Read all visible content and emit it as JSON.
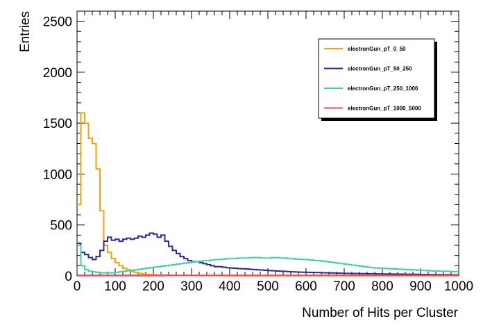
{
  "chart_data": {
    "type": "line",
    "title": "",
    "xlabel": "Number of Hits per Cluster",
    "ylabel": "Entries",
    "xlim": [
      0,
      1000
    ],
    "ylim": [
      0,
      2600
    ],
    "x_ticks": [
      "0",
      "100",
      "200",
      "300",
      "400",
      "500",
      "600",
      "700",
      "800",
      "900",
      "1000"
    ],
    "y_ticks": [
      "0",
      "500",
      "1000",
      "1500",
      "2000",
      "2500"
    ],
    "grid": false,
    "legend_position": "top-right",
    "bin_width": 10,
    "series": [
      {
        "name": "electronGun_pT_0_50",
        "color": "#f5a300",
        "values": [
          700,
          1600,
          1500,
          1350,
          1300,
          1050,
          640,
          300,
          230,
          170,
          130,
          100,
          75,
          60,
          45,
          35,
          25,
          20,
          15,
          12,
          10,
          8,
          7,
          6,
          5,
          5,
          4,
          4,
          3,
          3,
          3,
          2,
          2,
          2,
          2,
          2,
          2,
          2,
          1,
          1,
          1,
          1,
          1,
          1,
          1,
          1,
          1,
          1,
          1,
          1,
          1,
          1,
          1,
          1,
          1,
          1,
          1,
          1,
          1,
          1,
          1,
          1,
          1,
          1,
          1,
          1,
          1,
          1,
          1,
          1,
          1,
          1,
          1,
          1,
          1,
          1,
          1,
          1,
          1,
          1,
          1,
          1,
          1,
          1,
          1,
          1,
          1,
          1,
          1,
          1,
          1,
          1,
          1,
          1,
          1,
          1,
          1,
          1,
          1,
          1
        ]
      },
      {
        "name": "electronGun_pT_50_250",
        "color": "#2c2c8c",
        "values": [
          320,
          230,
          210,
          180,
          160,
          190,
          250,
          340,
          380,
          350,
          360,
          340,
          360,
          370,
          360,
          370,
          390,
          380,
          400,
          420,
          410,
          380,
          400,
          340,
          290,
          250,
          220,
          190,
          170,
          150,
          140,
          140,
          130,
          120,
          110,
          100,
          90,
          90,
          85,
          80,
          78,
          75,
          72,
          70,
          68,
          65,
          62,
          60,
          58,
          55,
          52,
          50,
          48,
          46,
          44,
          42,
          40,
          38,
          37,
          36,
          35,
          34,
          33,
          32,
          31,
          30,
          29,
          28,
          27,
          26,
          25,
          24,
          24,
          23,
          22,
          22,
          21,
          21,
          20,
          20,
          19,
          19,
          18,
          18,
          17,
          17,
          16,
          16,
          15,
          15,
          14,
          14,
          13,
          13,
          12,
          12,
          11,
          11,
          10,
          10
        ]
      },
      {
        "name": "electronGun_pT_250_1000",
        "color": "#3fcfa0",
        "values": [
          300,
          100,
          60,
          45,
          40,
          35,
          30,
          30,
          30,
          30,
          35,
          40,
          45,
          50,
          55,
          60,
          65,
          70,
          75,
          80,
          85,
          90,
          95,
          100,
          105,
          110,
          115,
          120,
          125,
          130,
          135,
          140,
          145,
          150,
          150,
          155,
          160,
          160,
          165,
          170,
          170,
          170,
          175,
          175,
          175,
          180,
          180,
          180,
          175,
          175,
          175,
          180,
          180,
          175,
          175,
          170,
          170,
          165,
          165,
          160,
          160,
          155,
          150,
          150,
          145,
          140,
          135,
          130,
          125,
          120,
          115,
          110,
          105,
          100,
          95,
          90,
          85,
          80,
          78,
          76,
          74,
          72,
          70,
          68,
          66,
          64,
          62,
          60,
          58,
          56,
          54,
          52,
          50,
          48,
          47,
          46,
          45,
          44,
          43,
          42
        ]
      },
      {
        "name": "electronGun_pT_1000_5000",
        "color": "#ff4060",
        "values": [
          5,
          5,
          5,
          5,
          5,
          5,
          5,
          5,
          5,
          5,
          5,
          5,
          5,
          5,
          5,
          5,
          5,
          5,
          5,
          5,
          5,
          5,
          5,
          5,
          5,
          5,
          5,
          5,
          5,
          5,
          5,
          5,
          5,
          5,
          5,
          5,
          5,
          5,
          5,
          5,
          5,
          5,
          5,
          5,
          5,
          5,
          5,
          5,
          5,
          5,
          5,
          5,
          5,
          5,
          5,
          5,
          5,
          5,
          5,
          5,
          5,
          5,
          5,
          5,
          5,
          5,
          5,
          5,
          5,
          5,
          5,
          5,
          5,
          5,
          5,
          5,
          5,
          5,
          5,
          5,
          5,
          5,
          5,
          5,
          5,
          5,
          5,
          5,
          5,
          5,
          5,
          5,
          5,
          5,
          5,
          5,
          5,
          5,
          5,
          5
        ]
      }
    ]
  }
}
